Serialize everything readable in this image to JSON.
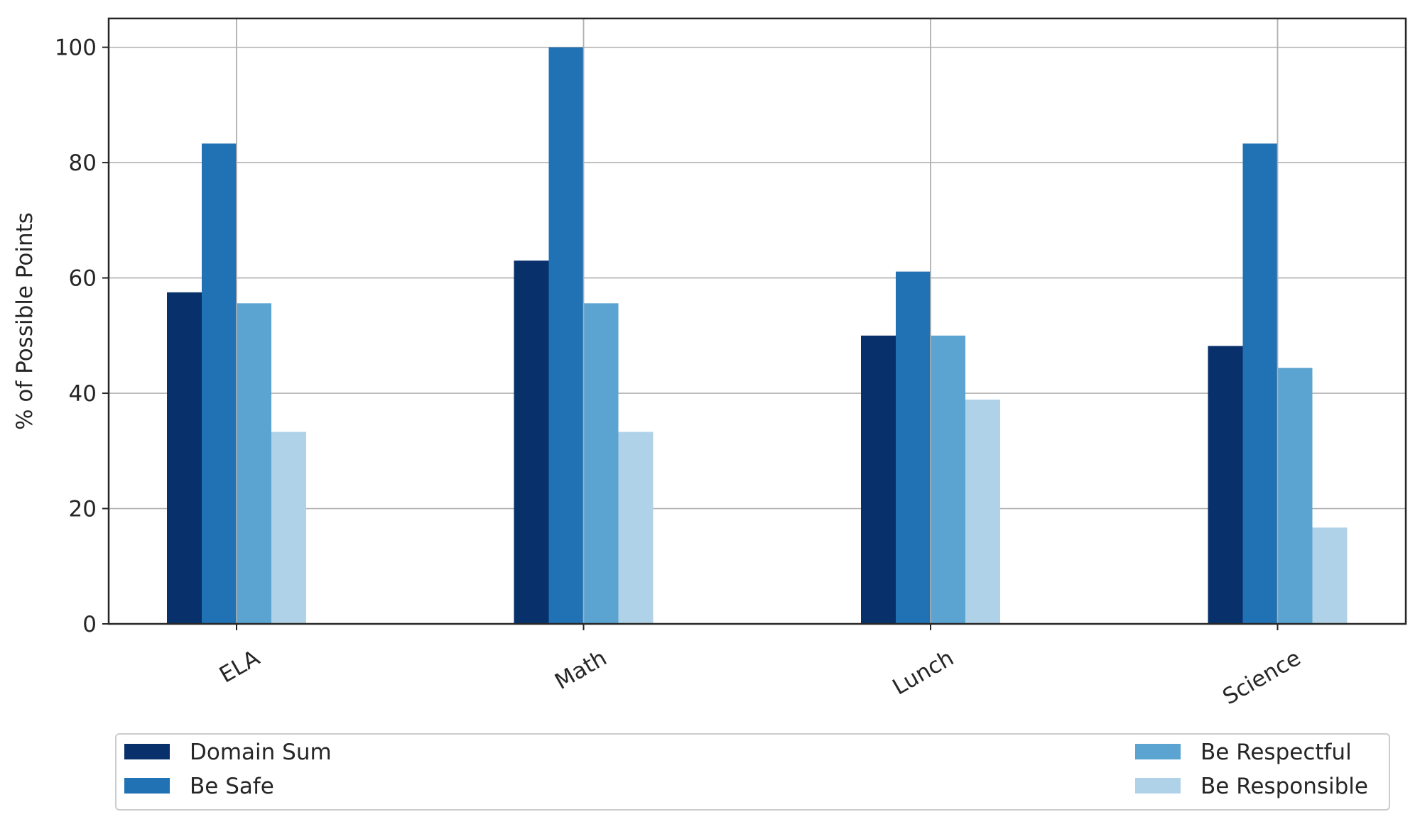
{
  "chart_data": {
    "type": "bar",
    "categories": [
      "ELA",
      "Math",
      "Lunch",
      "Science"
    ],
    "series": [
      {
        "name": "Domain Sum",
        "values": [
          57.5,
          63.0,
          50.0,
          48.2
        ],
        "color": "#08306b"
      },
      {
        "name": "Be Safe",
        "values": [
          83.3,
          100.0,
          61.1,
          83.3
        ],
        "color": "#2171b5"
      },
      {
        "name": "Be Respectful",
        "values": [
          55.6,
          55.6,
          50.0,
          44.4
        ],
        "color": "#5ba3d0"
      },
      {
        "name": "Be Responsible",
        "values": [
          33.3,
          33.3,
          38.9,
          16.7
        ],
        "color": "#b0d2e8"
      }
    ],
    "xlabel": "",
    "ylabel": "% of Possible Points",
    "ylim": [
      0,
      105
    ],
    "yticks": [
      0,
      20,
      40,
      60,
      80,
      100
    ],
    "grid": true,
    "legend_position": "bottom",
    "x_tick_rotation": 30
  }
}
